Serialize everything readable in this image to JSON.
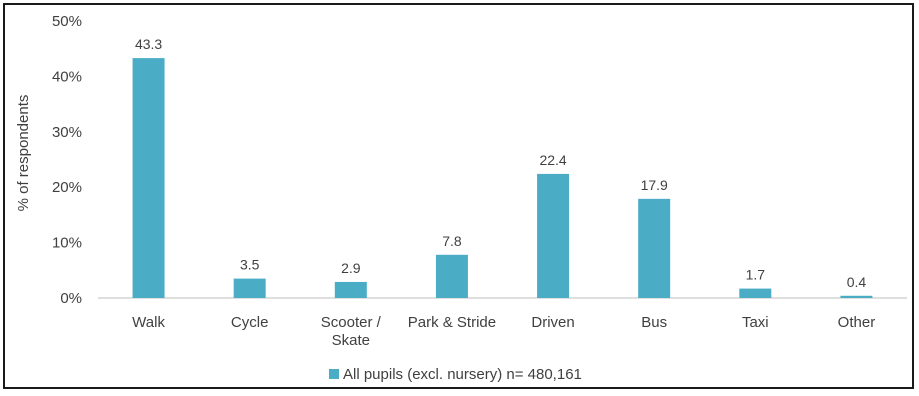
{
  "colors": {
    "bar": "#4BACC6",
    "axis_text": "#404040",
    "axis_line": "#BFBFBF"
  },
  "chart_data": {
    "type": "bar",
    "categories": [
      "Walk",
      "Cycle",
      "Scooter / Skate",
      "Park & Stride",
      "Driven",
      "Bus",
      "Taxi",
      "Other"
    ],
    "category_lines": [
      [
        "Walk"
      ],
      [
        "Cycle"
      ],
      [
        "Scooter /",
        "Skate"
      ],
      [
        "Park & Stride"
      ],
      [
        "Driven"
      ],
      [
        "Bus"
      ],
      [
        "Taxi"
      ],
      [
        "Other"
      ]
    ],
    "series": [
      {
        "name": "All pupils (excl. nursery) n= 480,161",
        "values": [
          43.3,
          3.5,
          2.9,
          7.8,
          22.4,
          17.9,
          1.7,
          0.4
        ]
      }
    ],
    "data_labels": [
      "43.3",
      "3.5",
      "2.9",
      "7.8",
      "22.4",
      "17.9",
      "1.7",
      "0.4"
    ],
    "ylabel": "% of respondents",
    "ylim": [
      0,
      50
    ],
    "yticks": [
      "0%",
      "10%",
      "20%",
      "30%",
      "40%",
      "50%"
    ],
    "grid": false,
    "legend": "bottom"
  }
}
